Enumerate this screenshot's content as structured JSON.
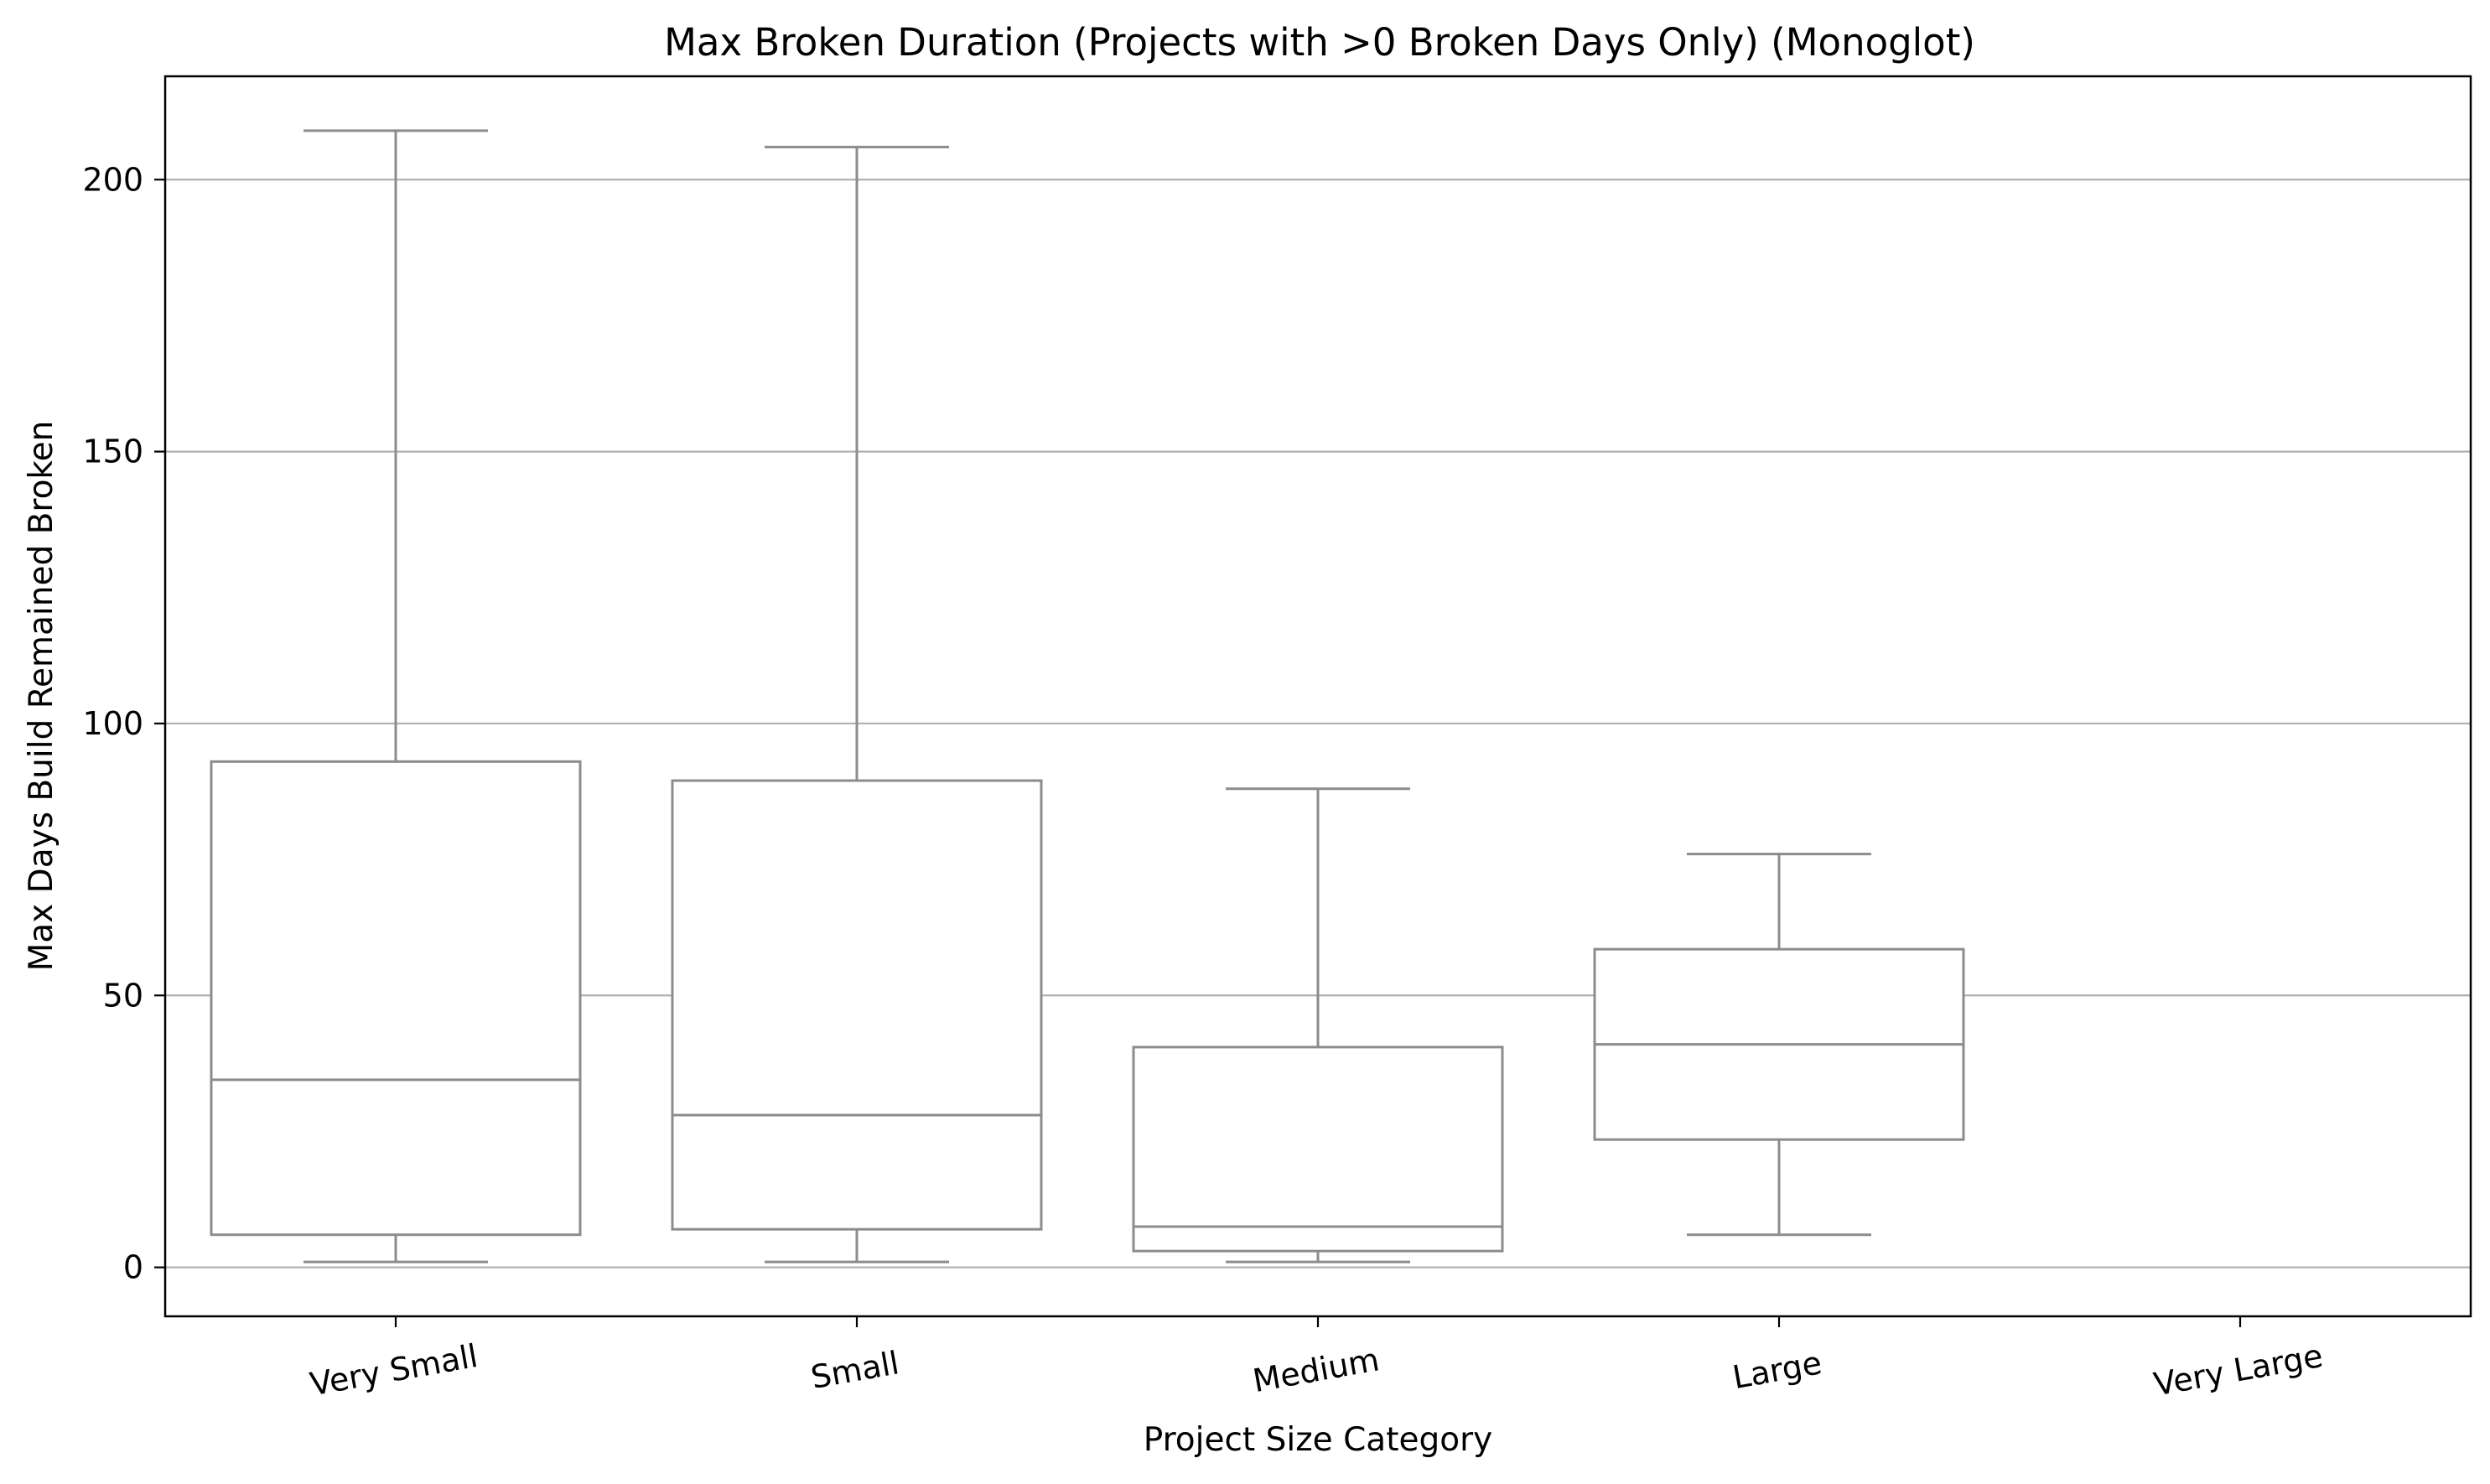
{
  "chart_data": {
    "type": "box",
    "title": "Max Broken Duration (Projects with >0 Broken Days Only) (Monoglot)",
    "xlabel": "Project Size Category",
    "ylabel": "Max Days Build Remained Broken",
    "ylim": [
      -9,
      219
    ],
    "yticks": [
      0,
      50,
      100,
      150,
      200
    ],
    "grid": "y",
    "categories": [
      "Very Small",
      "Small",
      "Medium",
      "Large",
      "Very Large"
    ],
    "boxes": [
      {
        "category": "Very Small",
        "whisker_low": 1,
        "q1": 6,
        "median": 34.5,
        "q3": 93,
        "whisker_high": 209
      },
      {
        "category": "Small",
        "whisker_low": 1,
        "q1": 7,
        "median": 28,
        "q3": 89.5,
        "whisker_high": 206
      },
      {
        "category": "Medium",
        "whisker_low": 1,
        "q1": 3,
        "median": 7.5,
        "q3": 40.5,
        "whisker_high": 88
      },
      {
        "category": "Large",
        "whisker_low": 6,
        "q1": 23.5,
        "median": 41,
        "q3": 58.5,
        "whisker_high": 76
      },
      {
        "category": "Very Large",
        "whisker_low": null,
        "q1": null,
        "median": null,
        "q3": null,
        "whisker_high": null
      }
    ],
    "colors": {
      "box_line": "#8c8c8c",
      "grid": "#b0b0b0",
      "axes": "#000000"
    }
  }
}
